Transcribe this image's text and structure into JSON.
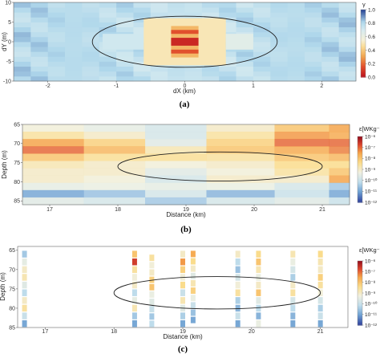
{
  "chart_data": [
    {
      "panel": "(a)",
      "type": "heatmap",
      "xlabel": "dX (km)",
      "ylabel": "dY (m)",
      "xlim": [
        -2.5,
        2.5
      ],
      "ylim": [
        -10,
        10
      ],
      "xticks": [
        "-2",
        "-1",
        "0",
        "1",
        "2"
      ],
      "yticks": [
        "10",
        "5",
        "0",
        "-5",
        "-10"
      ],
      "colorbar": {
        "title": "γ",
        "range": [
          0,
          1
        ],
        "ticks": [
          "1.0",
          "0.8",
          "0.6",
          "0.4",
          "0.2",
          "0.0"
        ]
      },
      "background_gamma": 0.8,
      "blocks": [
        {
          "x": [
            -1.2,
            -0.6
          ],
          "y": [
            -2,
            2
          ],
          "gamma": 0.72
        },
        {
          "x": [
            -0.6,
            0.6
          ],
          "y": [
            -6,
            6
          ],
          "gamma": 0.5
        },
        {
          "x": [
            0.6,
            1.0
          ],
          "y": [
            -2,
            2
          ],
          "gamma": 0.65
        },
        {
          "x": [
            -0.2,
            0.2
          ],
          "y": [
            -4,
            4
          ],
          "gamma": 0.35
        },
        {
          "x": [
            -0.2,
            0.2
          ],
          "y": [
            -1,
            1
          ],
          "gamma": 0.05
        },
        {
          "x": [
            -0.2,
            0.2
          ],
          "y": [
            2,
            3
          ],
          "gamma": 0.15
        },
        {
          "x": [
            -0.2,
            0.2
          ],
          "y": [
            -3,
            -2
          ],
          "gamma": 0.15
        }
      ],
      "ellipse": {
        "center": [
          0,
          0
        ],
        "semi_axes": [
          1.35,
          6.5
        ]
      }
    },
    {
      "panel": "(b)",
      "type": "heatmap",
      "xlabel": "Distance (km)",
      "ylabel": "Depth (m)",
      "xlim": [
        16.6,
        21.4
      ],
      "ylim": [
        86,
        65
      ],
      "xticks": [
        "17",
        "18",
        "19",
        "20",
        "21"
      ],
      "yticks": [
        "65",
        "70",
        "75",
        "80",
        "85"
      ],
      "colorbar": {
        "title": "ε[WKg⁻¹]",
        "range": [
          -12,
          -6
        ],
        "ticks": [
          "10⁻⁶",
          "10⁻⁷",
          "10⁻⁸",
          "10⁻⁹",
          "10⁻¹⁰",
          "10⁻¹¹",
          "10⁻¹²"
        ]
      },
      "columns": [
        {
          "x": [
            16.6,
            17.5
          ],
          "log_eps": [
            -9.2,
            -8.6,
            -7.5,
            -7.0,
            -8.0,
            -8.8,
            -9.0,
            -9.0,
            -9.5,
            -11.0,
            -9.6
          ]
        },
        {
          "x": [
            17.5,
            18.4
          ],
          "log_eps": [
            -9.5,
            -9.0,
            -8.2,
            -7.8,
            -8.5,
            -9.0,
            -9.0,
            -9.2,
            -9.4,
            -10.6,
            -9.8
          ]
        },
        {
          "x": [
            18.4,
            19.3
          ],
          "log_eps": [
            -9.8,
            -9.8,
            -9.6,
            -8.8,
            -8.5,
            -9.2,
            -9.6,
            -9.8,
            -9.5,
            -9.8,
            -10.5
          ]
        },
        {
          "x": [
            19.3,
            20.3
          ],
          "log_eps": [
            -9.0,
            -8.6,
            -8.2,
            -8.0,
            -8.6,
            -9.0,
            -9.2,
            -9.0,
            -9.4,
            -10.8,
            -9.8
          ]
        },
        {
          "x": [
            20.3,
            21.1
          ],
          "log_eps": [
            -8.0,
            -7.4,
            -7.0,
            -7.6,
            -8.0,
            -8.4,
            -8.6,
            -9.0,
            -9.8,
            -10.0,
            -9.6
          ]
        },
        {
          "x": [
            21.1,
            21.4
          ],
          "log_eps": [
            -7.5,
            -7.6,
            -7.0,
            -7.2,
            -7.8,
            -8.4,
            -8.0,
            -7.5,
            -10.5,
            -11.0,
            -10.0
          ]
        }
      ],
      "ellipse": {
        "center": [
          19.5,
          76
        ],
        "semi_axes": [
          1.5,
          3.8
        ]
      }
    },
    {
      "panel": "(c)",
      "type": "scatter",
      "xlabel": "Distance (km)",
      "ylabel": "Depth (m)",
      "xlim": [
        16.6,
        21.4
      ],
      "ylim": [
        85,
        64
      ],
      "xticks": [
        "17",
        "18",
        "19",
        "20",
        "21"
      ],
      "yticks": [
        "65",
        "70",
        "75",
        "80",
        "85"
      ],
      "colorbar": {
        "title": "ε[WKg⁻¹]",
        "range": [
          -12,
          -6
        ],
        "ticks": [
          "10⁻⁶",
          "10⁻⁷",
          "10⁻⁸",
          "10⁻⁹",
          "10⁻¹⁰",
          "10⁻¹¹",
          "10⁻¹²"
        ]
      },
      "profiles": [
        {
          "x": 16.7,
          "d0": 65,
          "d1": 85,
          "values": [
            -10.5,
            -9.5,
            -9.0,
            -8.8,
            -9.6,
            -10.2,
            -9.0,
            -8.6,
            -10.0,
            -11.0
          ]
        },
        {
          "x": 18.3,
          "d0": 65,
          "d1": 85,
          "values": [
            -8.0,
            -6.6,
            -8.6,
            -9.2,
            -9.0,
            -10.2,
            -9.5,
            -8.8,
            -10.5,
            -11.0
          ]
        },
        {
          "x": 18.55,
          "d0": 66,
          "d1": 85,
          "values": [
            -8.6,
            -9.2,
            -9.0,
            -8.2,
            -8.0,
            -9.4,
            -9.6,
            -10.0,
            -10.5,
            -10.2
          ]
        },
        {
          "x": 19.0,
          "d0": 65,
          "d1": 85,
          "values": [
            -9.0,
            -7.4,
            -8.2,
            -9.2,
            -8.4,
            -10.0,
            -8.8,
            -9.6,
            -10.4,
            -11.0
          ]
        },
        {
          "x": 19.15,
          "d0": 65,
          "d1": 84,
          "values": [
            -7.6,
            -8.4,
            -9.0,
            -9.6,
            -8.8,
            -8.2,
            -9.4,
            -10.0,
            -10.6,
            -11.0
          ]
        },
        {
          "x": 19.8,
          "d0": 65,
          "d1": 85,
          "values": [
            -9.0,
            -10.2,
            -10.6,
            -9.8,
            -9.2,
            -8.6,
            -10.4,
            -10.8,
            -10.0,
            -11.0
          ]
        },
        {
          "x": 20.1,
          "d0": 65,
          "d1": 85,
          "values": [
            -8.4,
            -8.0,
            -8.8,
            -9.4,
            -9.0,
            -8.0,
            -9.6,
            -10.2,
            -10.8,
            -9.4
          ]
        },
        {
          "x": 20.6,
          "d0": 65,
          "d1": 85,
          "values": [
            -8.8,
            -9.4,
            -9.8,
            -10.4,
            -9.0,
            -8.6,
            -9.8,
            -10.2,
            -10.8,
            -11.0
          ]
        },
        {
          "x": 21.0,
          "d0": 65,
          "d1": 85,
          "values": [
            -8.4,
            -8.8,
            -9.0,
            -8.2,
            -8.6,
            -9.2,
            -9.8,
            -10.4,
            -10.0,
            -11.0
          ]
        }
      ],
      "ellipse": {
        "center": [
          19.5,
          76
        ],
        "semi_axes": [
          1.5,
          4.2
        ]
      }
    }
  ]
}
